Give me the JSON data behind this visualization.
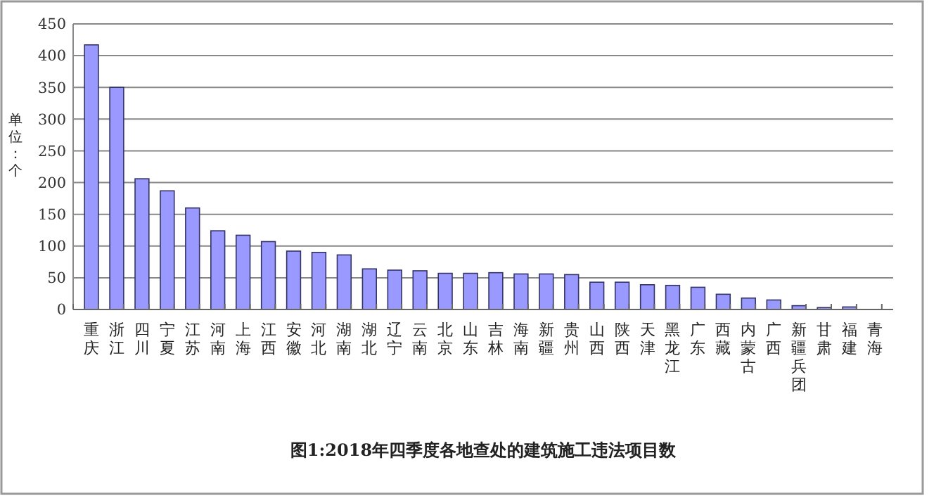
{
  "chart_data": {
    "type": "bar",
    "title": "图1:2018年四季度各地查处的建筑施工违法项目数",
    "ylabel": "单位：个",
    "categories": [
      "重庆",
      "浙江",
      "四川",
      "宁夏",
      "江苏",
      "河南",
      "上海",
      "江西",
      "安徽",
      "河北",
      "湖南",
      "湖北",
      "辽宁",
      "云南",
      "北京",
      "山东",
      "吉林",
      "海南",
      "新疆",
      "贵州",
      "山西",
      "陕西",
      "天津",
      "黑龙江",
      "广东",
      "西藏",
      "内蒙古",
      "广西",
      "新疆兵团",
      "甘肃",
      "福建",
      "青海"
    ],
    "values": [
      417,
      350,
      206,
      187,
      160,
      124,
      117,
      107,
      92,
      90,
      86,
      64,
      62,
      61,
      57,
      57,
      58,
      56,
      56,
      55,
      43,
      43,
      39,
      38,
      35,
      24,
      18,
      15,
      6,
      3,
      4,
      0
    ],
    "color": "#9999ff",
    "ylim": [
      0,
      450
    ],
    "yticks": [
      0,
      50,
      100,
      150,
      200,
      250,
      300,
      350,
      400,
      450
    ],
    "grid": "y"
  }
}
